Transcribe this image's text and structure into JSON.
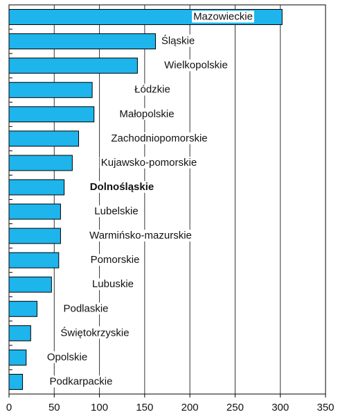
{
  "chart_data": {
    "type": "barh",
    "categories": [
      "Mazowieckie",
      "Śląskie",
      "Wielkopolskie",
      "Łódzkie",
      "Małopolskie",
      "Zachodniopomorskie",
      "Kujawsko-pomorskie",
      "Dolnośląskie",
      "Lubelskie",
      "Warmińsko-mazurskie",
      "Pomorskie",
      "Lubuskie",
      "Podlaskie",
      "Świętokrzyskie",
      "Opolskie",
      "Podkarpackie"
    ],
    "values": [
      302,
      162,
      142,
      92,
      94,
      77,
      70,
      61,
      57,
      57,
      55,
      47,
      31,
      24,
      19,
      15
    ],
    "color": "#1eb4ec",
    "xlim": [
      0,
      350
    ],
    "xticks": [
      0,
      50,
      100,
      150,
      200,
      250,
      300,
      350
    ],
    "grid": true
  }
}
